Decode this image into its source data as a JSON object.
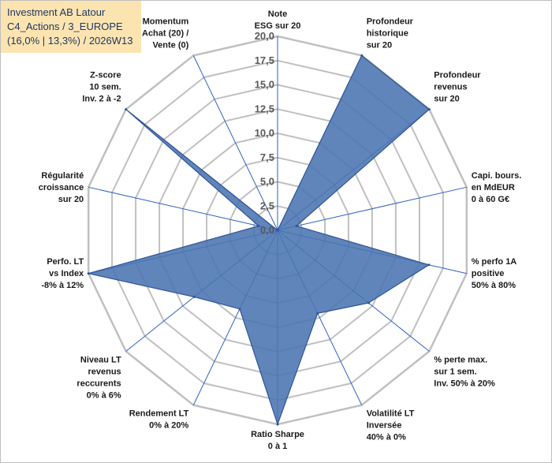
{
  "title": {
    "line1": "Investment AB Latour",
    "line2": "C4_Actions / 3_EUROPE",
    "line3": "(16,0% | 13,3%) / 2026W13"
  },
  "colors": {
    "fill": "#4a74b0",
    "stroke": "#2f5597",
    "grid": "#c0c0c0",
    "spoke": "#2e62c4",
    "title_bg": "#fce4b0"
  },
  "chart_data": {
    "type": "radar",
    "title": "Investment AB Latour",
    "rmin": 0,
    "rmax": 20,
    "ticks": [
      "0,0",
      "2,5",
      "5,0",
      "7,5",
      "10,0",
      "12,5",
      "15,0",
      "17,5",
      "20,0"
    ],
    "tick_values": [
      0,
      2.5,
      5,
      7.5,
      10,
      12.5,
      15,
      17.5,
      20
    ],
    "axes": [
      {
        "label": [
          "Note",
          "ESG sur 20"
        ],
        "value": 0
      },
      {
        "label": [
          "Profondeur",
          "historique",
          "sur 20"
        ],
        "value": 20
      },
      {
        "label": [
          "Profondeur",
          "revenus",
          "sur 20"
        ],
        "value": 20
      },
      {
        "label": [
          "Capi. bours.",
          "en MdEUR",
          "0 à 60 G€"
        ],
        "value": 2
      },
      {
        "label": [
          "% perfo 1A",
          "positive",
          "50% à 80%"
        ],
        "value": 16
      },
      {
        "label": [
          "% perte max.",
          "sur 1 sem.",
          "Inv. 50% à 20%"
        ],
        "value": 12
      },
      {
        "label": [
          "Volatilité LT",
          "Inversée",
          "40% à 0%"
        ],
        "value": 9.5
      },
      {
        "label": [
          "Ratio Sharpe",
          "0 à 1"
        ],
        "value": 20
      },
      {
        "label": [
          "Rendement LT",
          "0% à 20%"
        ],
        "value": 9
      },
      {
        "label": [
          "Niveau LT",
          "revenus",
          "reccurents",
          "0% à 6%"
        ],
        "value": 11
      },
      {
        "label": [
          "Perfo. LT",
          "vs Index",
          "-8% à 12%"
        ],
        "value": 20
      },
      {
        "label": [
          "Régularité",
          "croissance",
          "sur 20"
        ],
        "value": 2
      },
      {
        "label": [
          "Z-score",
          "10 sem.",
          "Inv. 2 à -2"
        ],
        "value": 20
      },
      {
        "label": [
          "Momentum",
          "Achat (20) /",
          "Vente (0)"
        ],
        "value": 0
      }
    ]
  }
}
